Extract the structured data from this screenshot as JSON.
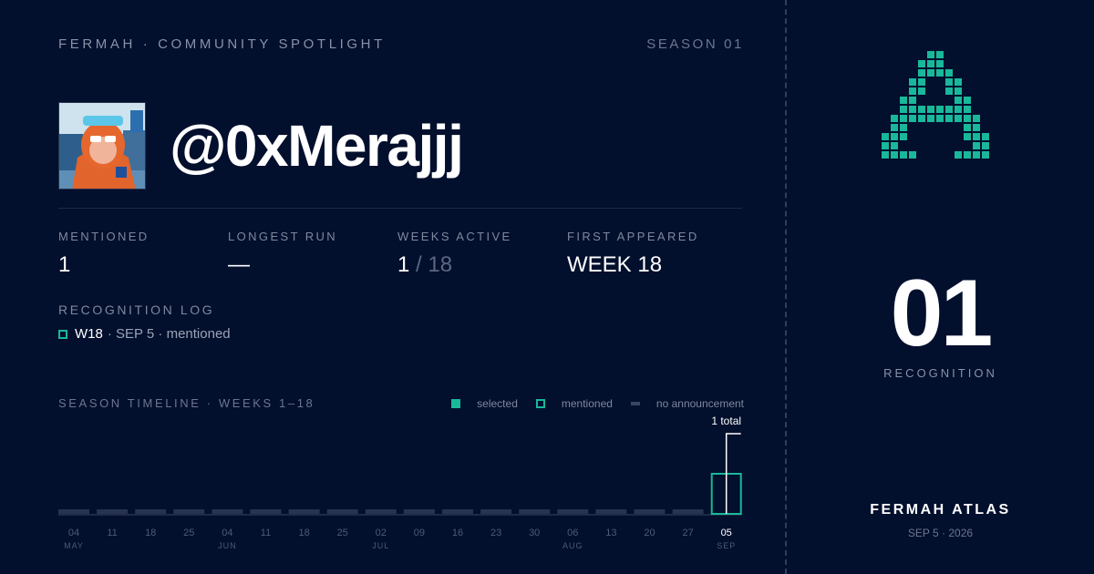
{
  "header": {
    "brand": "FERMAH · COMMUNITY SPOTLIGHT",
    "season": "SEASON 01"
  },
  "profile": {
    "handle": "@0xMerajjj",
    "avatar_icon": "avatar-photo"
  },
  "stats": [
    {
      "label": "MENTIONED",
      "value": "1",
      "suffix": ""
    },
    {
      "label": "LONGEST RUN",
      "value": "—",
      "suffix": ""
    },
    {
      "label": "WEEKS ACTIVE",
      "value": "1",
      "suffix": " / 18"
    },
    {
      "label": "FIRST APPEARED",
      "value": "WEEK 18",
      "suffix": ""
    }
  ],
  "log": {
    "title": "RECOGNITION LOG",
    "entries": [
      {
        "week": "W18",
        "detail": "· SEP 5 · mentioned",
        "status": "mentioned"
      }
    ]
  },
  "timeline": {
    "title": "SEASON TIMELINE · WEEKS 1–18",
    "legend": {
      "selected": "selected",
      "mentioned": "mentioned",
      "none": "no announcement"
    },
    "total_label": "1 total",
    "colors": {
      "selected": "#19b89a",
      "mentioned": "#19b89a",
      "none": "#283350",
      "axis": "#3a4562"
    }
  },
  "chart_data": {
    "type": "bar",
    "title": "SEASON TIMELINE · WEEKS 1–18",
    "categories": [
      "04",
      "11",
      "18",
      "25",
      "04",
      "11",
      "18",
      "25",
      "02",
      "09",
      "16",
      "23",
      "30",
      "06",
      "13",
      "20",
      "27",
      "05"
    ],
    "month_labels": [
      "MAY",
      "",
      "",
      "",
      "JUN",
      "",
      "",
      "",
      "JUL",
      "",
      "",
      "",
      "",
      "AUG",
      "",
      "",
      "",
      "SEP"
    ],
    "series": [
      {
        "name": "mentioned",
        "values": [
          0,
          0,
          0,
          0,
          0,
          0,
          0,
          0,
          0,
          0,
          0,
          0,
          0,
          0,
          0,
          0,
          0,
          1
        ]
      },
      {
        "name": "selected",
        "values": [
          0,
          0,
          0,
          0,
          0,
          0,
          0,
          0,
          0,
          0,
          0,
          0,
          0,
          0,
          0,
          0,
          0,
          0
        ]
      }
    ],
    "status": [
      "none",
      "none",
      "none",
      "none",
      "none",
      "none",
      "none",
      "none",
      "none",
      "none",
      "none",
      "none",
      "none",
      "none",
      "none",
      "none",
      "none",
      "mentioned"
    ],
    "cumulative_total": 1
  },
  "summary": {
    "count": "01",
    "label": "RECOGNITION",
    "logo_icon": "fermah-pixel-a-logo",
    "footer_title": "FERMAH ATLAS",
    "footer_date": "SEP 5 · 2026"
  }
}
